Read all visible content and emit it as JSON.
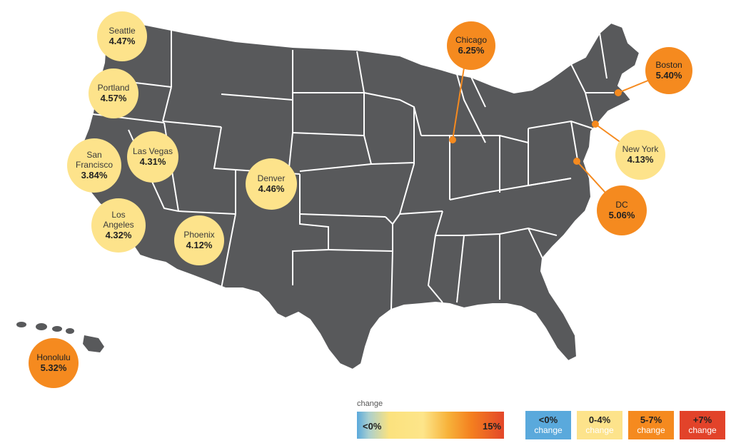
{
  "colors": {
    "land": "#58595b",
    "border": "#ffffff",
    "yellow": "#fde38b",
    "orange": "#f58a1f",
    "blue": "#5aa9dc",
    "red": "#e2432a",
    "leader": "#f58a1f"
  },
  "cities": [
    {
      "name": "Seattle",
      "value": "4.47%",
      "tier": "yellow"
    },
    {
      "name": "Portland",
      "value": "4.57%",
      "tier": "yellow"
    },
    {
      "name": "San Francisco",
      "value": "3.84%",
      "tier": "yellow"
    },
    {
      "name": "Las Vegas",
      "value": "4.31%",
      "tier": "yellow"
    },
    {
      "name": "Los Angeles",
      "value": "4.32%",
      "tier": "yellow"
    },
    {
      "name": "Phoenix",
      "value": "4.12%",
      "tier": "yellow"
    },
    {
      "name": "Denver",
      "value": "4.46%",
      "tier": "yellow"
    },
    {
      "name": "Chicago",
      "value": "6.25%",
      "tier": "orange"
    },
    {
      "name": "Boston",
      "value": "5.40%",
      "tier": "orange"
    },
    {
      "name": "New York",
      "value": "4.13%",
      "tier": "yellow"
    },
    {
      "name": "DC",
      "value": "5.06%",
      "tier": "orange"
    },
    {
      "name": "Honolulu",
      "value": "5.32%",
      "tier": "orange"
    }
  ],
  "legend": {
    "title": "change",
    "gradient_low": "<0%",
    "gradient_high": "15%",
    "swatches": [
      {
        "range": "<0%",
        "word": "change",
        "color": "#5aa9dc"
      },
      {
        "range": "0-4%",
        "word": "change",
        "color": "#fde38b"
      },
      {
        "range": "5-7%",
        "word": "change",
        "color": "#f58a1f"
      },
      {
        "range": "+7%",
        "word": "change",
        "color": "#e2432a"
      }
    ]
  }
}
